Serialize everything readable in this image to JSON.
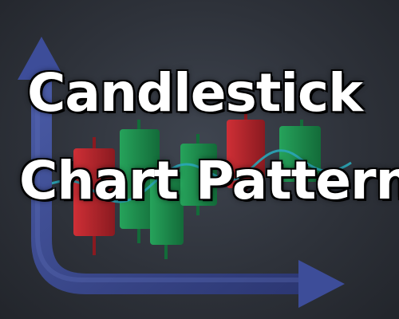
{
  "title": {
    "line1": "Candlestick",
    "line2": "Chart Patterns"
  },
  "colors": {
    "background": "#2e323a",
    "arrow": "#3a4a8a",
    "bullish": "#1f8a4c",
    "bearish": "#b3242b",
    "wave": "#2aa6b8",
    "text": "#ffffff"
  },
  "icons": {
    "axes": "axis-arrows-icon",
    "candles": "candlestick-icon",
    "wave": "wave-line-icon"
  }
}
